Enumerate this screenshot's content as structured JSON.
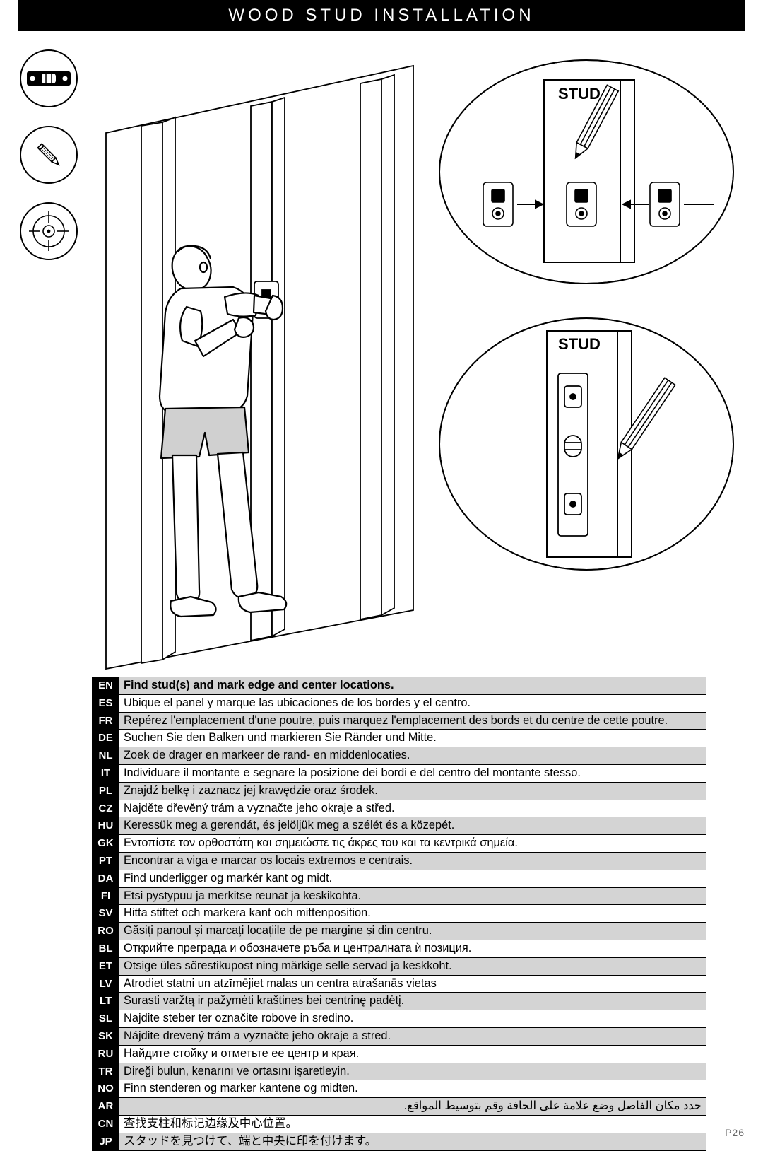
{
  "title": "WOOD STUD INSTALLATION",
  "page_number": "P26",
  "stud_label_1": "STUD",
  "stud_label_2": "STUD",
  "rows": [
    {
      "code": "EN",
      "shade": true,
      "text": "Find stud(s) and mark edge and center locations."
    },
    {
      "code": "ES",
      "shade": false,
      "text": "Ubique el panel y marque las ubicaciones de los bordes y el centro."
    },
    {
      "code": "FR",
      "shade": true,
      "text": "Repérez l'emplacement d'une poutre, puis marquez l'emplacement des bords et du centre de cette poutre."
    },
    {
      "code": "DE",
      "shade": false,
      "text": "Suchen Sie den Balken und markieren Sie Ränder und Mitte."
    },
    {
      "code": "NL",
      "shade": true,
      "text": "Zoek de drager en markeer de rand- en middenlocaties."
    },
    {
      "code": "IT",
      "shade": false,
      "text": "Individuare il montante e segnare la posizione dei bordi e del centro del montante stesso."
    },
    {
      "code": "PL",
      "shade": true,
      "text": "Znajdź belkę i zaznacz jej krawędzie oraz środek."
    },
    {
      "code": "CZ",
      "shade": false,
      "text": "Najděte dřevěný trám a vyznačte jeho okraje a střed."
    },
    {
      "code": "HU",
      "shade": true,
      "text": "Keressük meg a gerendát, és jelöljük meg a szélét és a közepét."
    },
    {
      "code": "GK",
      "shade": false,
      "text": "Εντοπίστε τον ορθοστάτη και σημειώστε τις άκρες του και τα κεντρικά σημεία."
    },
    {
      "code": "PT",
      "shade": true,
      "text": "Encontrar a viga e marcar os locais extremos e centrais."
    },
    {
      "code": "DA",
      "shade": false,
      "text": "Find underligger og markér kant og midt."
    },
    {
      "code": "FI",
      "shade": true,
      "text": "Etsi pystypuu ja merkitse reunat ja keskikohta."
    },
    {
      "code": "SV",
      "shade": false,
      "text": "Hitta stiftet och markera kant och mittenposition."
    },
    {
      "code": "RO",
      "shade": true,
      "text": "Găsiți panoul și marcați locațiile de pe margine și din centru."
    },
    {
      "code": "BL",
      "shade": false,
      "text": "Открийте преграда и обозначете ръба и централната ѝ позиция."
    },
    {
      "code": "ET",
      "shade": true,
      "text": "Otsige üles sõrestikupost ning märkige selle servad ja keskkoht."
    },
    {
      "code": "LV",
      "shade": false,
      "text": "Atrodiet statni un atzīmējiet malas un centra atrašanās vietas"
    },
    {
      "code": "LT",
      "shade": true,
      "text": "Surasti varžtą ir pažymėti kraštines bei centrinę padėtį."
    },
    {
      "code": "SL",
      "shade": false,
      "text": "Najdite steber ter označite robove in sredino."
    },
    {
      "code": "SK",
      "shade": true,
      "text": "Nájdite drevený trám a vyznačte jeho okraje a stred."
    },
    {
      "code": "RU",
      "shade": false,
      "text": "Найдите стойку и отметьте ее центр и края."
    },
    {
      "code": "TR",
      "shade": true,
      "text": "Direği bulun, kenarını ve ortasını işaretleyin."
    },
    {
      "code": "NO",
      "shade": false,
      "text": "Finn stenderen og marker kantene og midten."
    },
    {
      "code": "AR",
      "shade": true,
      "text": "حدد مكان الفاصل وضع علامة على الحافة وقم بتوسيط المواقع.",
      "rtl": true
    },
    {
      "code": "CN",
      "shade": false,
      "text": "查找支柱和标记边缘及中心位置。"
    },
    {
      "code": "JP",
      "shade": true,
      "text": "スタッドを見つけて、端と中央に印を付けます。"
    }
  ]
}
